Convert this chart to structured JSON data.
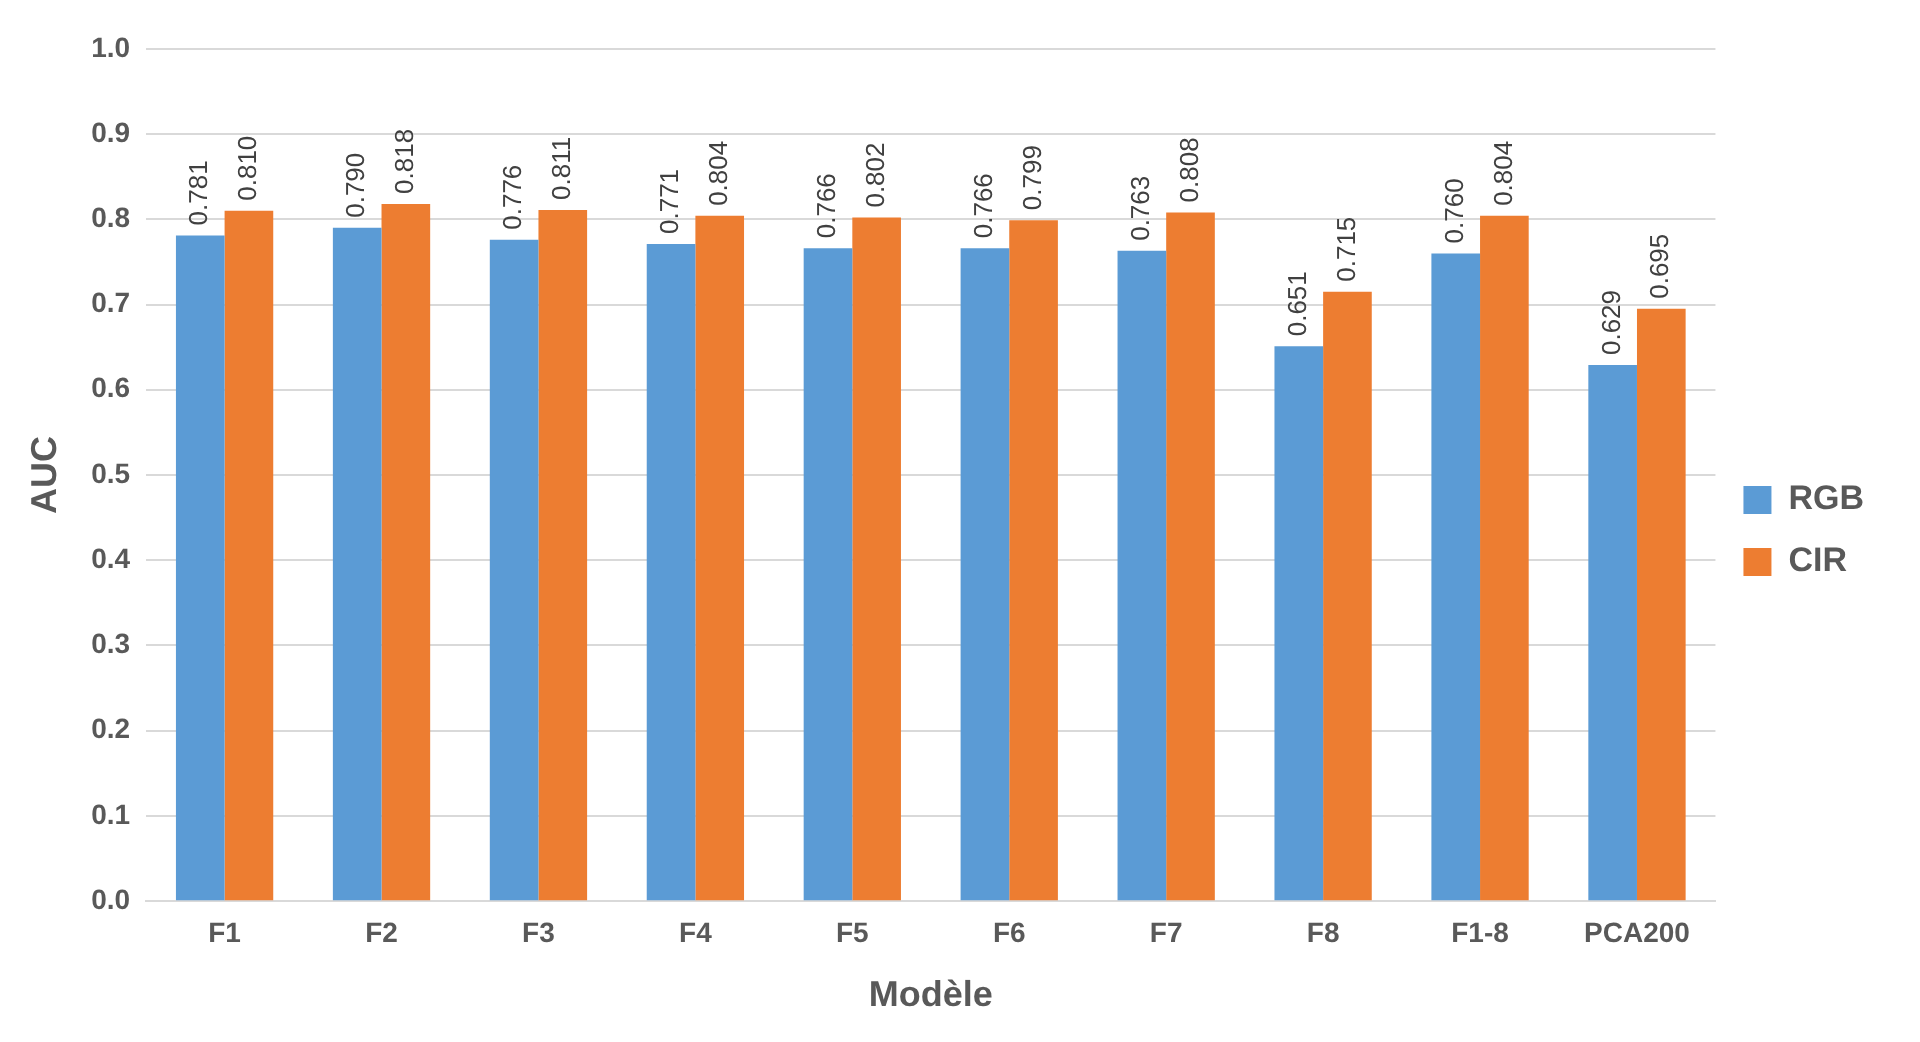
{
  "chart_data": {
    "type": "bar",
    "xlabel": "Modèle",
    "ylabel": "AUC",
    "categories": [
      "F1",
      "F2",
      "F3",
      "F4",
      "F5",
      "F6",
      "F7",
      "F8",
      "F1-8",
      "PCA200"
    ],
    "series": [
      {
        "name": "RGB",
        "color": "#5b9bd5",
        "values": [
          0.781,
          0.79,
          0.776,
          0.771,
          0.766,
          0.766,
          0.763,
          0.651,
          0.76,
          0.629
        ],
        "value_labels": [
          "0.781",
          "0.790",
          "0.776",
          "0.771",
          "0.766",
          "0.766",
          "0.763",
          "0.651",
          "0.760",
          "0.629"
        ]
      },
      {
        "name": "CIR",
        "color": "#ed7d31",
        "values": [
          0.81,
          0.818,
          0.811,
          0.804,
          0.802,
          0.799,
          0.808,
          0.715,
          0.804,
          0.695
        ],
        "value_labels": [
          "0.810",
          "0.818",
          "0.811",
          "0.804",
          "0.802",
          "0.799",
          "0.808",
          "0.715",
          "0.804",
          "0.695"
        ]
      }
    ],
    "ylim": [
      0,
      1
    ],
    "yticks": [
      {
        "value": 0,
        "label": "0.0"
      },
      {
        "value": 0.1,
        "label": "0.1"
      },
      {
        "value": 0.2,
        "label": "0.2"
      },
      {
        "value": 0.3,
        "label": "0.3"
      },
      {
        "value": 0.4,
        "label": "0.4"
      },
      {
        "value": 0.5,
        "label": "0.5"
      },
      {
        "value": 0.6,
        "label": "0.6"
      },
      {
        "value": 0.7,
        "label": "0.7"
      },
      {
        "value": 0.8,
        "label": "0.8"
      },
      {
        "value": 0.9,
        "label": "0.9"
      },
      {
        "value": 1,
        "label": "1.0"
      }
    ],
    "grid": "y",
    "legend": "right"
  }
}
